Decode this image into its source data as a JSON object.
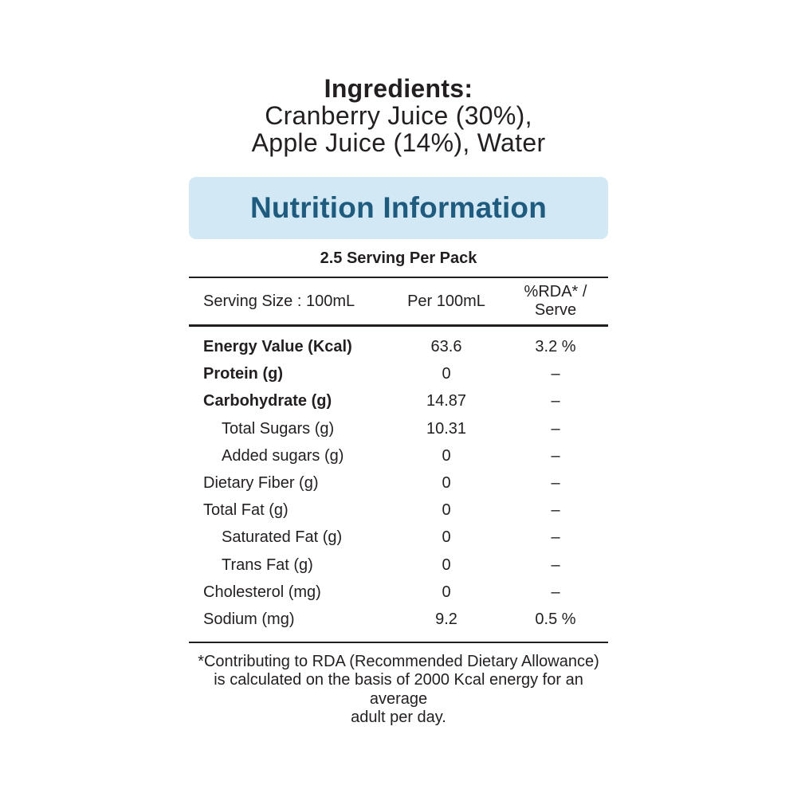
{
  "ingredients": {
    "heading": "Ingredients:",
    "lines": [
      "Cranberry Juice (30%),",
      "Apple Juice (14%), Water"
    ]
  },
  "nutrition": {
    "title": "Nutrition Information",
    "servings_per_pack": "2.5 Serving Per Pack",
    "table": {
      "header": {
        "serving_size": "Serving Size : 100mL",
        "per_100ml": "Per 100mL",
        "rda_line1": "%RDA* /",
        "rda_line2": "Serve"
      },
      "rows": [
        {
          "label": "Energy Value (Kcal)",
          "per_100ml": "63.6",
          "rda": "3.2 %",
          "bold": true,
          "indent": false
        },
        {
          "label": "Protein (g)",
          "per_100ml": "0",
          "rda": "–",
          "bold": true,
          "indent": false
        },
        {
          "label": "Carbohydrate (g)",
          "per_100ml": "14.87",
          "rda": "–",
          "bold": true,
          "indent": false
        },
        {
          "label": "Total Sugars (g)",
          "per_100ml": "10.31",
          "rda": "–",
          "bold": false,
          "indent": true
        },
        {
          "label": "Added sugars (g)",
          "per_100ml": "0",
          "rda": "–",
          "bold": false,
          "indent": true
        },
        {
          "label": "Dietary Fiber (g)",
          "per_100ml": "0",
          "rda": "–",
          "bold": false,
          "indent": false
        },
        {
          "label": "Total Fat (g)",
          "per_100ml": "0",
          "rda": "–",
          "bold": false,
          "indent": false
        },
        {
          "label": "Saturated Fat (g)",
          "per_100ml": "0",
          "rda": "–",
          "bold": false,
          "indent": true
        },
        {
          "label": "Trans Fat (g)",
          "per_100ml": "0",
          "rda": "–",
          "bold": false,
          "indent": true
        },
        {
          "label": "Cholesterol (mg)",
          "per_100ml": "0",
          "rda": "–",
          "bold": false,
          "indent": false
        },
        {
          "label": "Sodium (mg)",
          "per_100ml": "9.2",
          "rda": "0.5 %",
          "bold": false,
          "indent": false
        }
      ]
    },
    "footnote_lines": [
      "*Contributing to RDA (Recommended Dietary Allowance)",
      "is calculated on the basis of 2000 Kcal energy for an average",
      "adult per day."
    ]
  },
  "colors": {
    "banner_bg": "#d2e8f5",
    "banner_text": "#1e5b7e",
    "body_text": "#231f20",
    "rule": "#231f20"
  }
}
